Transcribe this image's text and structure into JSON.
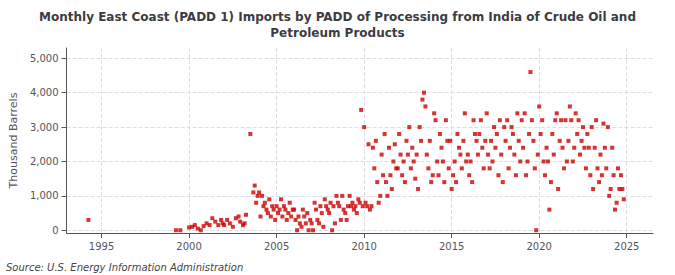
{
  "chart_data": {
    "type": "scatter",
    "title": "Monthly East Coast (PADD 1) Imports by PADD of Processing from India of Crude Oil and\nPetroleum Products",
    "ylabel": "Thousand Barrels",
    "source": "Source: U.S. Energy Information Administration",
    "color": "#cc0000",
    "marker": "square",
    "grid": true,
    "xlim": [
      1993.0,
      2026.5
    ],
    "ylim": [
      -80,
      5300
    ],
    "xticks": [
      1995,
      2000,
      2005,
      2010,
      2015,
      2020,
      2025
    ],
    "yticks": [
      0,
      {
        "value": 1000,
        "label": "1,000"
      },
      {
        "value": 2000,
        "label": "2,000"
      },
      {
        "value": 3000,
        "label": "3,000"
      },
      {
        "value": 4000,
        "label": "4,000"
      },
      {
        "value": 5000,
        "label": "5,000"
      }
    ],
    "x": [
      1994.25,
      1999.25,
      1999.5,
      2000.0,
      2000.17,
      2000.33,
      2000.5,
      2000.67,
      2000.83,
      2001.0,
      2001.17,
      2001.33,
      2001.5,
      2001.67,
      2001.83,
      2001.92,
      2002.0,
      2002.17,
      2002.33,
      2002.5,
      2002.67,
      2002.83,
      2002.92,
      2003.08,
      2003.17,
      2003.25,
      2003.5,
      2003.67,
      2003.75,
      2003.83,
      2003.92,
      2004.0,
      2004.08,
      2004.17,
      2004.25,
      2004.33,
      2004.42,
      2004.5,
      2004.58,
      2004.67,
      2004.75,
      2004.83,
      2004.92,
      2005.0,
      2005.08,
      2005.17,
      2005.25,
      2005.33,
      2005.42,
      2005.5,
      2005.58,
      2005.67,
      2005.75,
      2005.83,
      2005.92,
      2006.0,
      2006.08,
      2006.17,
      2006.25,
      2006.33,
      2006.42,
      2006.5,
      2006.58,
      2006.67,
      2006.75,
      2006.83,
      2006.92,
      2007.0,
      2007.08,
      2007.17,
      2007.25,
      2007.33,
      2007.42,
      2007.5,
      2007.58,
      2007.67,
      2007.75,
      2007.83,
      2007.92,
      2008.0,
      2008.08,
      2008.17,
      2008.25,
      2008.33,
      2008.42,
      2008.5,
      2008.58,
      2008.67,
      2008.75,
      2008.83,
      2008.92,
      2009.0,
      2009.08,
      2009.17,
      2009.25,
      2009.33,
      2009.42,
      2009.5,
      2009.58,
      2009.67,
      2009.75,
      2009.83,
      2009.92,
      2010.0,
      2010.08,
      2010.17,
      2010.25,
      2010.33,
      2010.42,
      2010.5,
      2010.58,
      2010.67,
      2010.75,
      2010.83,
      2010.92,
      2011.0,
      2011.08,
      2011.17,
      2011.25,
      2011.33,
      2011.42,
      2011.5,
      2011.58,
      2011.67,
      2011.75,
      2011.83,
      2011.92,
      2012.0,
      2012.08,
      2012.17,
      2012.25,
      2012.33,
      2012.42,
      2012.5,
      2012.58,
      2012.67,
      2012.75,
      2012.83,
      2012.92,
      2013.0,
      2013.08,
      2013.17,
      2013.25,
      2013.33,
      2013.42,
      2013.5,
      2013.58,
      2013.67,
      2013.75,
      2013.83,
      2013.92,
      2014.0,
      2014.08,
      2014.17,
      2014.25,
      2014.33,
      2014.42,
      2014.5,
      2014.58,
      2014.67,
      2014.75,
      2014.83,
      2014.92,
      2015.0,
      2015.08,
      2015.17,
      2015.25,
      2015.33,
      2015.42,
      2015.5,
      2015.58,
      2015.67,
      2015.75,
      2015.83,
      2015.92,
      2016.0,
      2016.08,
      2016.17,
      2016.25,
      2016.33,
      2016.42,
      2016.5,
      2016.58,
      2016.67,
      2016.75,
      2016.83,
      2016.92,
      2017.0,
      2017.08,
      2017.17,
      2017.25,
      2017.33,
      2017.42,
      2017.5,
      2017.58,
      2017.67,
      2017.75,
      2017.83,
      2017.92,
      2018.0,
      2018.08,
      2018.17,
      2018.25,
      2018.33,
      2018.42,
      2018.5,
      2018.58,
      2018.67,
      2018.75,
      2018.83,
      2018.92,
      2019.0,
      2019.08,
      2019.17,
      2019.25,
      2019.33,
      2019.42,
      2019.5,
      2019.58,
      2019.67,
      2019.75,
      2019.83,
      2019.92,
      2020.0,
      2020.08,
      2020.17,
      2020.25,
      2020.33,
      2020.42,
      2020.5,
      2020.58,
      2020.67,
      2020.75,
      2020.83,
      2020.92,
      2021.0,
      2021.08,
      2021.17,
      2021.25,
      2021.33,
      2021.42,
      2021.5,
      2021.58,
      2021.67,
      2021.75,
      2021.83,
      2021.92,
      2022.0,
      2022.08,
      2022.17,
      2022.25,
      2022.33,
      2022.42,
      2022.5,
      2022.58,
      2022.67,
      2022.75,
      2022.83,
      2022.92,
      2023.0,
      2023.08,
      2023.17,
      2023.25,
      2023.33,
      2023.42,
      2023.5,
      2023.58,
      2023.67,
      2023.75,
      2023.83,
      2023.92,
      2024.0,
      2024.08,
      2024.17,
      2024.25,
      2024.33,
      2024.42,
      2024.5,
      2024.58,
      2024.67,
      2024.75,
      2024.83
    ],
    "values": [
      300,
      0,
      0,
      80,
      100,
      150,
      50,
      0,
      120,
      200,
      150,
      350,
      250,
      150,
      300,
      200,
      150,
      300,
      200,
      100,
      350,
      400,
      250,
      150,
      200,
      450,
      2800,
      1100,
      1300,
      800,
      1000,
      1100,
      400,
      1000,
      700,
      800,
      600,
      500,
      900,
      400,
      700,
      600,
      300,
      700,
      500,
      600,
      900,
      400,
      700,
      600,
      300,
      500,
      800,
      400,
      600,
      600,
      300,
      0,
      400,
      200,
      100,
      600,
      400,
      200,
      500,
      0,
      300,
      200,
      0,
      800,
      600,
      300,
      200,
      700,
      500,
      100,
      900,
      700,
      600,
      500,
      800,
      0,
      700,
      200,
      1000,
      800,
      700,
      300,
      1000,
      600,
      500,
      300,
      700,
      1000,
      700,
      800,
      600,
      700,
      500,
      900,
      800,
      3500,
      700,
      3000,
      800,
      700,
      2500,
      600,
      700,
      2400,
      1800,
      2600,
      1400,
      800,
      1000,
      2200,
      1600,
      2800,
      1400,
      1000,
      2400,
      1600,
      1200,
      2000,
      2500,
      1800,
      1800,
      2800,
      2200,
      1600,
      2000,
      1400,
      2600,
      2200,
      3000,
      1800,
      2400,
      2000,
      1500,
      2200,
      1200,
      3000,
      2600,
      3800,
      4000,
      3600,
      2200,
      1800,
      2600,
      1400,
      1600,
      3400,
      3200,
      2000,
      1600,
      2800,
      2400,
      2000,
      1400,
      3200,
      2600,
      1800,
      2600,
      1200,
      1600,
      2000,
      1400,
      2800,
      2400,
      2200,
      1800,
      2600,
      3400,
      2000,
      2200,
      1600,
      2000,
      1400,
      3200,
      2800,
      2600,
      2200,
      2800,
      3200,
      2400,
      1800,
      2600,
      3400,
      2200,
      1800,
      2600,
      2000,
      3000,
      2400,
      2800,
      1600,
      3200,
      2200,
      1400,
      3000,
      2600,
      3200,
      1800,
      2400,
      3000,
      2800,
      2200,
      1600,
      3400,
      2600,
      2000,
      3200,
      2400,
      3400,
      1600,
      2000,
      2800,
      4600,
      3200,
      2600,
      1800,
      0,
      2200,
      3600,
      2800,
      3200,
      2000,
      1600,
      2400,
      2000,
      600,
      1400,
      2800,
      2200,
      3200,
      3400,
      1200,
      2600,
      3200,
      2400,
      1800,
      3200,
      2000,
      2600,
      3600,
      3200,
      2000,
      2400,
      3400,
      2800,
      3200,
      2200,
      2600,
      3000,
      2400,
      1800,
      2800,
      2400,
      1600,
      3000,
      1200,
      2400,
      3200,
      1800,
      1400,
      2200,
      1600,
      3100,
      2400,
      1800,
      3000,
      1000,
      1200,
      2400,
      1600,
      600,
      800,
      1800,
      1200,
      1600,
      1200,
      900
    ]
  }
}
